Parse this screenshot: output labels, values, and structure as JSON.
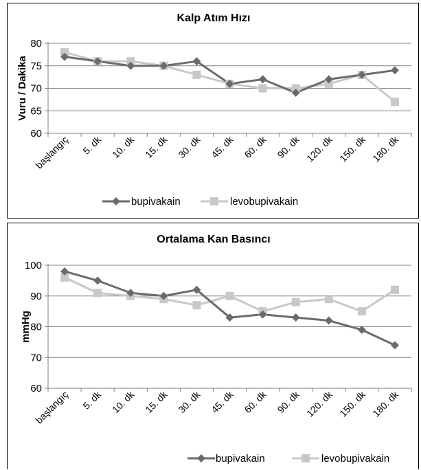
{
  "chart_data": [
    {
      "type": "line",
      "title": "Kalp Atım Hızı",
      "xlabel": "",
      "ylabel": "Vuru / Dakika",
      "ylim": [
        60,
        80
      ],
      "yticks": [
        60,
        65,
        70,
        75,
        80
      ],
      "categories": [
        "başlangıç",
        "5. dk",
        "10. dk",
        "15. dk",
        "30. dk",
        "45. dk",
        "60. dk",
        "90. dk",
        "120. dk",
        "150. dk",
        "180. dk"
      ],
      "series": [
        {
          "name": "bupivakain",
          "color": "#6b6b6b",
          "marker": "diamond",
          "values": [
            77,
            76,
            75,
            75,
            76,
            71,
            72,
            69,
            72,
            73,
            74
          ]
        },
        {
          "name": "levobupivakain",
          "color": "#c8c8c8",
          "marker": "square",
          "values": [
            78,
            76,
            76,
            75,
            73,
            71,
            70,
            70,
            71,
            73,
            67
          ]
        }
      ],
      "grid": "horizontal",
      "legend": "bottom"
    },
    {
      "type": "line",
      "title": "Ortalama Kan Basıncı",
      "xlabel": "",
      "ylabel": "mmHg",
      "ylim": [
        60,
        100
      ],
      "yticks": [
        60,
        70,
        80,
        90,
        100
      ],
      "categories": [
        "başlangıç",
        "5. dk",
        "10. dk",
        "15. dk",
        "30. dk",
        "45. dk",
        "60. dk",
        "90. dk",
        "120. dk",
        "150. dk",
        "180. dk"
      ],
      "series": [
        {
          "name": "bupivakain",
          "color": "#6b6b6b",
          "marker": "diamond",
          "values": [
            98,
            95,
            91,
            90,
            92,
            83,
            84,
            83,
            82,
            79,
            74
          ]
        },
        {
          "name": "levobupivakain",
          "color": "#c8c8c8",
          "marker": "square",
          "values": [
            96,
            91,
            90,
            89,
            87,
            90,
            85,
            88,
            89,
            85,
            92
          ]
        }
      ],
      "grid": "horizontal",
      "legend": "bottom-right"
    }
  ]
}
